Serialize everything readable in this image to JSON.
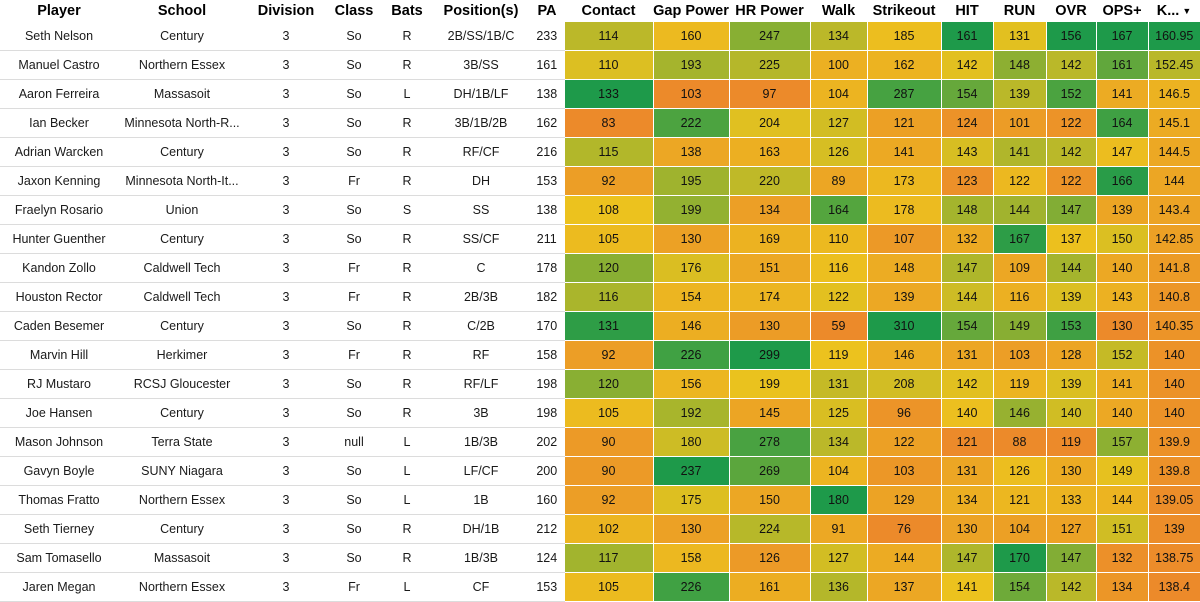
{
  "columns": [
    {
      "key": "player",
      "label": "Player"
    },
    {
      "key": "school",
      "label": "School"
    },
    {
      "key": "division",
      "label": "Division"
    },
    {
      "key": "class",
      "label": "Class"
    },
    {
      "key": "bats",
      "label": "Bats"
    },
    {
      "key": "positions",
      "label": "Position(s)"
    },
    {
      "key": "pa",
      "label": "PA"
    },
    {
      "key": "contact",
      "label": "Contact"
    },
    {
      "key": "gap_power",
      "label": "Gap Power"
    },
    {
      "key": "hr_power",
      "label": "HR Power"
    },
    {
      "key": "walk",
      "label": "Walk"
    },
    {
      "key": "strikeout",
      "label": "Strikeout"
    },
    {
      "key": "hit",
      "label": "HIT"
    },
    {
      "key": "run",
      "label": "RUN"
    },
    {
      "key": "ovr",
      "label": "OVR"
    },
    {
      "key": "ops_plus",
      "label": "OPS+"
    },
    {
      "key": "k_col",
      "label": "K..."
    }
  ],
  "sort_indicator": "▼",
  "rows": [
    {
      "player": "Seth Nelson",
      "school": "Century",
      "division": "3",
      "class": "So",
      "bats": "R",
      "positions": "2B/SS/1B/C",
      "pa": "233",
      "contact": "114",
      "gap_power": "160",
      "hr_power": "247",
      "walk": "134",
      "strikeout": "185",
      "hit": "161",
      "run": "131",
      "ovr": "156",
      "ops_plus": "167",
      "k_col": "160.95"
    },
    {
      "player": "Manuel Castro",
      "school": "Northern Essex",
      "division": "3",
      "class": "So",
      "bats": "R",
      "positions": "3B/SS",
      "pa": "161",
      "contact": "110",
      "gap_power": "193",
      "hr_power": "225",
      "walk": "100",
      "strikeout": "162",
      "hit": "142",
      "run": "148",
      "ovr": "142",
      "ops_plus": "161",
      "k_col": "152.45"
    },
    {
      "player": "Aaron Ferreira",
      "school": "Massasoit",
      "division": "3",
      "class": "So",
      "bats": "L",
      "positions": "DH/1B/LF",
      "pa": "138",
      "contact": "133",
      "gap_power": "103",
      "hr_power": "97",
      "walk": "104",
      "strikeout": "287",
      "hit": "154",
      "run": "139",
      "ovr": "152",
      "ops_plus": "141",
      "k_col": "146.5"
    },
    {
      "player": "Ian Becker",
      "school": "Minnesota North-R...",
      "division": "3",
      "class": "So",
      "bats": "R",
      "positions": "3B/1B/2B",
      "pa": "162",
      "contact": "83",
      "gap_power": "222",
      "hr_power": "204",
      "walk": "127",
      "strikeout": "121",
      "hit": "124",
      "run": "101",
      "ovr": "122",
      "ops_plus": "164",
      "k_col": "145.1"
    },
    {
      "player": "Adrian Warcken",
      "school": "Century",
      "division": "3",
      "class": "So",
      "bats": "R",
      "positions": "RF/CF",
      "pa": "216",
      "contact": "115",
      "gap_power": "138",
      "hr_power": "163",
      "walk": "126",
      "strikeout": "141",
      "hit": "143",
      "run": "141",
      "ovr": "142",
      "ops_plus": "147",
      "k_col": "144.5"
    },
    {
      "player": "Jaxon Kenning",
      "school": "Minnesota North-It...",
      "division": "3",
      "class": "Fr",
      "bats": "R",
      "positions": "DH",
      "pa": "153",
      "contact": "92",
      "gap_power": "195",
      "hr_power": "220",
      "walk": "89",
      "strikeout": "173",
      "hit": "123",
      "run": "122",
      "ovr": "122",
      "ops_plus": "166",
      "k_col": "144"
    },
    {
      "player": "Fraelyn Rosario",
      "school": "Union",
      "division": "3",
      "class": "So",
      "bats": "S",
      "positions": "SS",
      "pa": "138",
      "contact": "108",
      "gap_power": "199",
      "hr_power": "134",
      "walk": "164",
      "strikeout": "178",
      "hit": "148",
      "run": "144",
      "ovr": "147",
      "ops_plus": "139",
      "k_col": "143.4"
    },
    {
      "player": "Hunter Guenther",
      "school": "Century",
      "division": "3",
      "class": "So",
      "bats": "R",
      "positions": "SS/CF",
      "pa": "211",
      "contact": "105",
      "gap_power": "130",
      "hr_power": "169",
      "walk": "110",
      "strikeout": "107",
      "hit": "132",
      "run": "167",
      "ovr": "137",
      "ops_plus": "150",
      "k_col": "142.85"
    },
    {
      "player": "Kandon Zollo",
      "school": "Caldwell Tech",
      "division": "3",
      "class": "Fr",
      "bats": "R",
      "positions": "C",
      "pa": "178",
      "contact": "120",
      "gap_power": "176",
      "hr_power": "151",
      "walk": "116",
      "strikeout": "148",
      "hit": "147",
      "run": "109",
      "ovr": "144",
      "ops_plus": "140",
      "k_col": "141.8"
    },
    {
      "player": "Houston Rector",
      "school": "Caldwell Tech",
      "division": "3",
      "class": "Fr",
      "bats": "R",
      "positions": "2B/3B",
      "pa": "182",
      "contact": "116",
      "gap_power": "154",
      "hr_power": "174",
      "walk": "122",
      "strikeout": "139",
      "hit": "144",
      "run": "116",
      "ovr": "139",
      "ops_plus": "143",
      "k_col": "140.8"
    },
    {
      "player": "Caden Besemer",
      "school": "Century",
      "division": "3",
      "class": "So",
      "bats": "R",
      "positions": "C/2B",
      "pa": "170",
      "contact": "131",
      "gap_power": "146",
      "hr_power": "130",
      "walk": "59",
      "strikeout": "310",
      "hit": "154",
      "run": "149",
      "ovr": "153",
      "ops_plus": "130",
      "k_col": "140.35"
    },
    {
      "player": "Marvin Hill",
      "school": "Herkimer",
      "division": "3",
      "class": "Fr",
      "bats": "R",
      "positions": "RF",
      "pa": "158",
      "contact": "92",
      "gap_power": "226",
      "hr_power": "299",
      "walk": "119",
      "strikeout": "146",
      "hit": "131",
      "run": "103",
      "ovr": "128",
      "ops_plus": "152",
      "k_col": "140"
    },
    {
      "player": "RJ Mustaro",
      "school": "RCSJ Gloucester",
      "division": "3",
      "class": "So",
      "bats": "R",
      "positions": "RF/LF",
      "pa": "198",
      "contact": "120",
      "gap_power": "156",
      "hr_power": "199",
      "walk": "131",
      "strikeout": "208",
      "hit": "142",
      "run": "119",
      "ovr": "139",
      "ops_plus": "141",
      "k_col": "140"
    },
    {
      "player": "Joe Hansen",
      "school": "Century",
      "division": "3",
      "class": "So",
      "bats": "R",
      "positions": "3B",
      "pa": "198",
      "contact": "105",
      "gap_power": "192",
      "hr_power": "145",
      "walk": "125",
      "strikeout": "96",
      "hit": "140",
      "run": "146",
      "ovr": "140",
      "ops_plus": "140",
      "k_col": "140"
    },
    {
      "player": "Mason Johnson",
      "school": "Terra State",
      "division": "3",
      "class": "null",
      "bats": "L",
      "positions": "1B/3B",
      "pa": "202",
      "contact": "90",
      "gap_power": "180",
      "hr_power": "278",
      "walk": "134",
      "strikeout": "122",
      "hit": "121",
      "run": "88",
      "ovr": "119",
      "ops_plus": "157",
      "k_col": "139.9"
    },
    {
      "player": "Gavyn Boyle",
      "school": "SUNY Niagara",
      "division": "3",
      "class": "So",
      "bats": "L",
      "positions": "LF/CF",
      "pa": "200",
      "contact": "90",
      "gap_power": "237",
      "hr_power": "269",
      "walk": "104",
      "strikeout": "103",
      "hit": "131",
      "run": "126",
      "ovr": "130",
      "ops_plus": "149",
      "k_col": "139.8"
    },
    {
      "player": "Thomas Fratto",
      "school": "Northern Essex",
      "division": "3",
      "class": "So",
      "bats": "L",
      "positions": "1B",
      "pa": "160",
      "contact": "92",
      "gap_power": "175",
      "hr_power": "150",
      "walk": "180",
      "strikeout": "129",
      "hit": "134",
      "run": "121",
      "ovr": "133",
      "ops_plus": "144",
      "k_col": "139.05"
    },
    {
      "player": "Seth Tierney",
      "school": "Century",
      "division": "3",
      "class": "So",
      "bats": "R",
      "positions": "DH/1B",
      "pa": "212",
      "contact": "102",
      "gap_power": "130",
      "hr_power": "224",
      "walk": "91",
      "strikeout": "76",
      "hit": "130",
      "run": "104",
      "ovr": "127",
      "ops_plus": "151",
      "k_col": "139"
    },
    {
      "player": "Sam Tomasello",
      "school": "Massasoit",
      "division": "3",
      "class": "So",
      "bats": "R",
      "positions": "1B/3B",
      "pa": "124",
      "contact": "117",
      "gap_power": "158",
      "hr_power": "126",
      "walk": "127",
      "strikeout": "144",
      "hit": "147",
      "run": "170",
      "ovr": "147",
      "ops_plus": "132",
      "k_col": "138.75"
    },
    {
      "player": "Jaren Megan",
      "school": "Northern Essex",
      "division": "3",
      "class": "Fr",
      "bats": "L",
      "positions": "CF",
      "pa": "153",
      "contact": "105",
      "gap_power": "226",
      "hr_power": "161",
      "walk": "136",
      "strikeout": "137",
      "hit": "141",
      "run": "154",
      "ovr": "142",
      "ops_plus": "134",
      "k_col": "138.4"
    }
  ],
  "heatmap": {
    "colors": {
      "low": "#ec8a2a",
      "mid": "#ecc21e",
      "high": "#1e9a4a"
    },
    "ranges": {
      "contact": [
        83,
        133
      ],
      "gap_power": [
        103,
        237
      ],
      "hr_power": [
        97,
        299
      ],
      "walk": [
        59,
        180
      ],
      "strikeout": [
        76,
        310
      ],
      "hit": [
        121,
        161
      ],
      "run": [
        88,
        170
      ],
      "ovr": [
        119,
        156
      ],
      "ops_plus": [
        130,
        167
      ],
      "k_col": [
        138.4,
        160.95
      ]
    }
  }
}
